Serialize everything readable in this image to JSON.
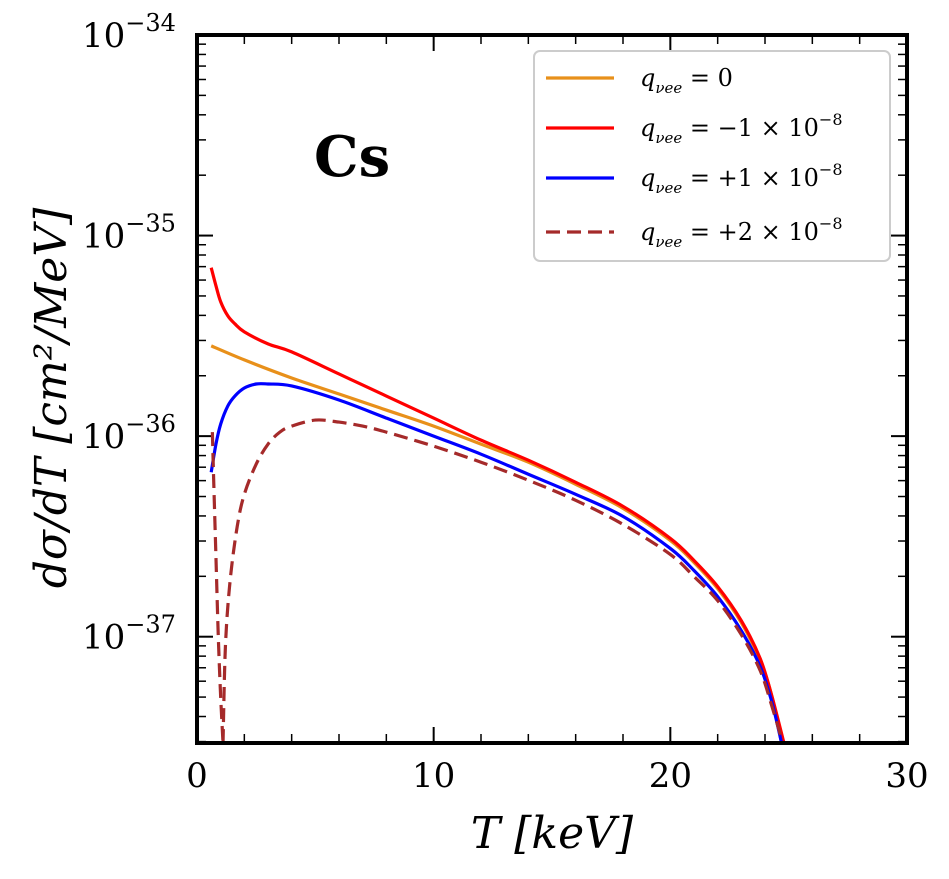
{
  "chart_data": {
    "type": "line",
    "title": "",
    "annotation": "Cs",
    "xlabel": "T [keV]",
    "ylabel": "dσ/dT [cm²/MeV]",
    "xlim": [
      0,
      30
    ],
    "ylim_log10": [
      -37.53,
      -34
    ],
    "yscale": "log",
    "x_ticks": [
      {
        "value": 0,
        "label": "0"
      },
      {
        "value": 10,
        "label": "10"
      },
      {
        "value": 20,
        "label": "20"
      },
      {
        "value": 30,
        "label": "30"
      }
    ],
    "y_ticks": [
      {
        "exp": -34,
        "base": "10",
        "sup": "−34"
      },
      {
        "exp": -35,
        "base": "10",
        "sup": "−35"
      },
      {
        "exp": -36,
        "base": "10",
        "sup": "−36"
      },
      {
        "exp": -37,
        "base": "10",
        "sup": "−37"
      }
    ],
    "legend_position": "top-right",
    "series": [
      {
        "name": "q_νee = 0",
        "legend_sym": "q",
        "legend_sub": "νee",
        "legend_rhs": " = 0",
        "color": "#e8901a",
        "dash": "solid",
        "x": [
          0.6,
          2,
          4,
          6,
          8,
          10,
          12,
          14,
          16,
          18,
          20,
          21,
          22,
          23,
          23.8,
          24.3,
          24.7
        ],
        "log10y": [
          -35.55,
          -35.62,
          -35.71,
          -35.79,
          -35.87,
          -35.95,
          -36.04,
          -36.13,
          -36.24,
          -36.36,
          -36.52,
          -36.63,
          -36.76,
          -36.93,
          -37.12,
          -37.3,
          -37.53
        ]
      },
      {
        "name": "q_νee = −1 × 10⁻⁸",
        "legend_sym": "q",
        "legend_sub": "νee",
        "legend_rhs": " = −1 × 10",
        "legend_sup": "−8",
        "color": "#ff0000",
        "dash": "solid",
        "x": [
          0.6,
          0.8,
          1,
          1.3,
          1.6,
          2,
          3,
          4,
          6,
          8,
          10,
          12,
          14,
          16,
          18,
          20,
          21,
          22,
          23,
          23.8,
          24.3,
          24.8
        ],
        "log10y": [
          -35.16,
          -35.25,
          -35.33,
          -35.4,
          -35.44,
          -35.48,
          -35.54,
          -35.58,
          -35.69,
          -35.8,
          -35.91,
          -36.02,
          -36.12,
          -36.23,
          -36.35,
          -36.51,
          -36.62,
          -36.75,
          -36.92,
          -37.11,
          -37.3,
          -37.53
        ]
      },
      {
        "name": "q_νee = +1 × 10⁻⁸",
        "legend_sym": "q",
        "legend_sub": "νee",
        "legend_rhs": " = +1 × 10",
        "legend_sup": "−8",
        "color": "#0000ff",
        "dash": "solid",
        "x": [
          0.6,
          0.8,
          1,
          1.3,
          1.6,
          2,
          2.5,
          3,
          4,
          6,
          8,
          10,
          12,
          14,
          16,
          18,
          20,
          21,
          22,
          23,
          23.8,
          24.3,
          24.7
        ],
        "log10y": [
          -36.18,
          -36.04,
          -35.94,
          -35.85,
          -35.8,
          -35.76,
          -35.74,
          -35.74,
          -35.75,
          -35.82,
          -35.91,
          -36.0,
          -36.09,
          -36.19,
          -36.29,
          -36.4,
          -36.56,
          -36.67,
          -36.8,
          -36.97,
          -37.15,
          -37.33,
          -37.53
        ]
      },
      {
        "name": "q_νee = +2 × 10⁻⁸",
        "legend_sym": "q",
        "legend_sub": "νee",
        "legend_rhs": " = +2 × 10",
        "legend_sup": "−8",
        "color": "#a52a2a",
        "dash": "dashed",
        "x": [
          0.65,
          0.7,
          0.8,
          0.9,
          1.0,
          1.1
        ],
        "log10y": [
          -35.98,
          -36.2,
          -36.6,
          -37.0,
          -37.3,
          -37.53
        ],
        "x2": [
          1.1,
          1.2,
          1.4,
          1.7,
          2,
          2.5,
          3,
          3.5,
          4,
          5,
          6,
          7,
          8,
          10,
          12,
          14,
          16,
          18,
          20,
          21,
          22,
          23,
          23.8,
          24.3,
          24.75
        ],
        "log10y2": [
          -37.53,
          -37.05,
          -36.72,
          -36.45,
          -36.29,
          -36.14,
          -36.04,
          -35.98,
          -35.95,
          -35.92,
          -35.93,
          -35.95,
          -35.98,
          -36.05,
          -36.13,
          -36.22,
          -36.32,
          -36.44,
          -36.59,
          -36.7,
          -36.82,
          -36.99,
          -37.17,
          -37.35,
          -37.53
        ]
      }
    ]
  }
}
